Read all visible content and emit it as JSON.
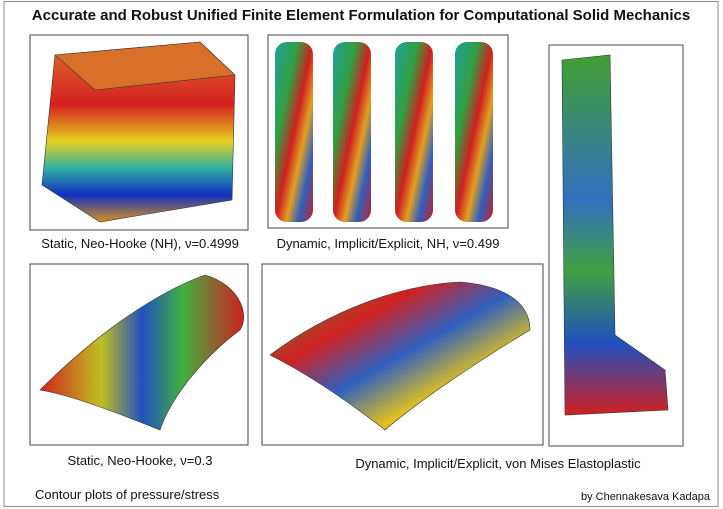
{
  "header": {
    "title": "Accurate and Robust Unified Finite Element Formulation for Computational Solid Mechanics"
  },
  "panels": [
    {
      "caption": "Static, Neo-Hooke (NH), ν=0.4999"
    },
    {
      "caption": "Dynamic, Implicit/Explicit, NH, ν=0.499"
    },
    {
      "caption": "Static, Neo-Hooke, ν=0.3"
    },
    {
      "caption": "Dynamic, Implicit/Explicit, von Mises Elastoplastic"
    }
  ],
  "footer": {
    "left": "Contour plots of pressure/stress",
    "right": "by Chennakesava Kadapa"
  }
}
